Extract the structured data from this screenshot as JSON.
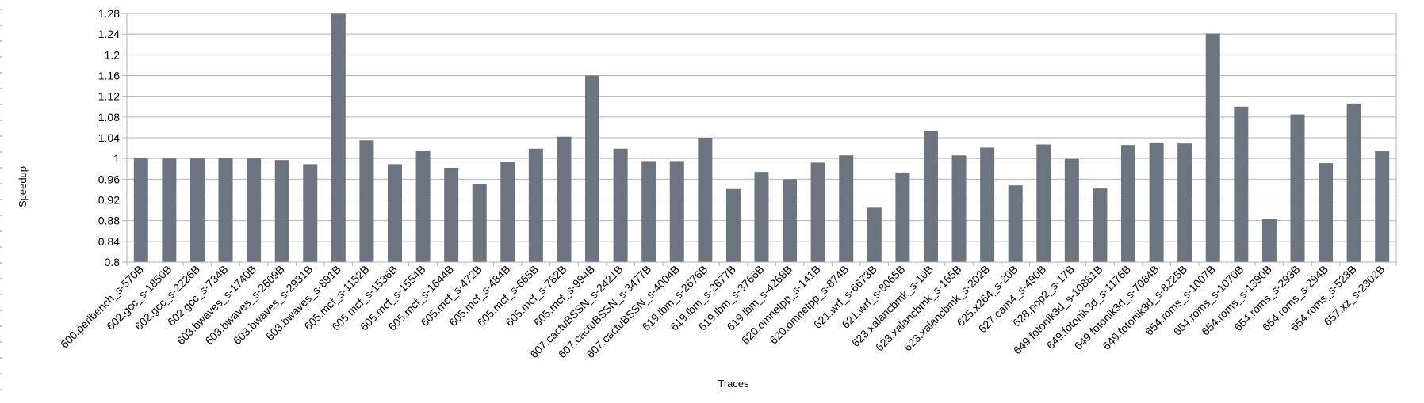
{
  "chart_data": {
    "type": "bar",
    "ylabel": "Speedup",
    "xlabel": "Traces",
    "ylim": [
      0.8,
      1.28
    ],
    "yticks": [
      "0.8",
      "0.84",
      "0.88",
      "0.92",
      "0.96",
      "1",
      "1.04",
      "1.08",
      "1.12",
      "1.16",
      "1.2",
      "1.24",
      "1.28"
    ],
    "grid": true,
    "bar_color": "#6c757f",
    "categories": [
      "600.perlbench_s-570B",
      "602.gcc_s-1850B",
      "602.gcc_s-2226B",
      "602.gcc_s-734B",
      "603.bwaves_s-1740B",
      "603.bwaves_s-2609B",
      "603.bwaves_s-2931B",
      "603.bwaves_s-891B",
      "605.mcf_s-1152B",
      "605.mcf_s-1536B",
      "605.mcf_s-1554B",
      "605.mcf_s-1644B",
      "605.mcf_s-472B",
      "605.mcf_s-484B",
      "605.mcf_s-665B",
      "605.mcf_s-782B",
      "605.mcf_s-994B",
      "607.cactuBSSN_s-2421B",
      "607.cactuBSSN_s-3477B",
      "607.cactuBSSN_s-4004B",
      "619.lbm_s-2676B",
      "619.lbm_s-2677B",
      "619.lbm_s-3766B",
      "619.lbm_s-4268B",
      "620.omnetpp_s-141B",
      "620.omnetpp_s-874B",
      "621.wrf_s-6673B",
      "621.wrf_s-8065B",
      "623.xalancbmk_s-10B",
      "623.xalancbmk_s-165B",
      "623.xalancbmk_s-202B",
      "625.x264_s-20B",
      "627.cam4_s-490B",
      "628.pop2_s-17B",
      "649.fotonik3d_s-10881B",
      "649.fotonik3d_s-1176B",
      "649.fotonik3d_s-7084B",
      "649.fotonik3d_s-8225B",
      "654.roms_s-1007B",
      "654.roms_s-1070B",
      "654.roms_s-1390B",
      "654.roms_s-293B",
      "654.roms_s-294B",
      "654.roms_s-523B",
      "657.xz_s-2302B"
    ],
    "values": [
      1.001,
      1.0,
      1.0,
      1.001,
      1.0,
      0.997,
      0.989,
      1.28,
      1.035,
      0.989,
      1.014,
      0.982,
      0.951,
      0.994,
      1.019,
      1.042,
      1.16,
      1.019,
      0.995,
      0.995,
      1.04,
      0.941,
      0.974,
      0.96,
      0.992,
      1.006,
      0.905,
      0.973,
      1.053,
      1.006,
      1.021,
      0.948,
      1.027,
      0.999,
      0.942,
      1.026,
      1.031,
      1.029,
      1.241,
      1.1,
      0.884,
      1.085,
      0.991,
      1.106,
      1.014
    ]
  }
}
